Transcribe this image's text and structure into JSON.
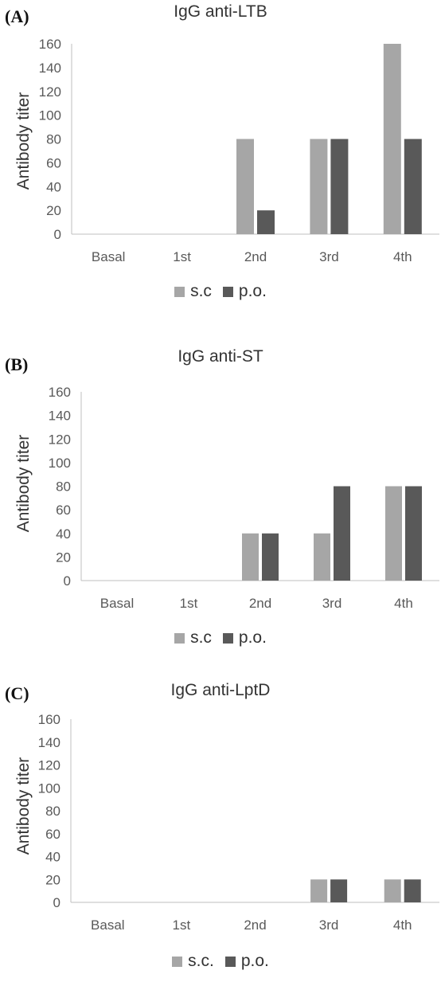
{
  "colors": {
    "sc": "#a6a6a6",
    "po": "#595959",
    "axis": "#bfbfbf",
    "text": "#595959"
  },
  "panels": [
    {
      "letter": "(A)",
      "title": "IgG anti-LTB",
      "ylabel": "Antibody titer",
      "legend": [
        "s.c",
        "p.o."
      ]
    },
    {
      "letter": "(B)",
      "title": "IgG anti-ST",
      "ylabel": "Antibody titer",
      "legend": [
        "s.c",
        "p.o."
      ]
    },
    {
      "letter": "(C)",
      "title": "IgG anti-LptD",
      "ylabel": "Antibody titer",
      "legend": [
        "s.c.",
        "p.o."
      ]
    }
  ],
  "chart_data": [
    {
      "type": "bar",
      "title": "IgG anti-LTB",
      "ylabel": "Antibody titer",
      "categories": [
        "Basal",
        "1st",
        "2nd",
        "3rd",
        "4th"
      ],
      "ylim": [
        0,
        160
      ],
      "yticks": [
        0,
        20,
        40,
        60,
        80,
        100,
        120,
        140,
        160
      ],
      "series": [
        {
          "name": "s.c",
          "values": [
            0,
            0,
            80,
            80,
            160
          ]
        },
        {
          "name": "p.o.",
          "values": [
            0,
            0,
            20,
            80,
            80
          ]
        }
      ],
      "legend": "bottom",
      "grid": false
    },
    {
      "type": "bar",
      "title": "IgG anti-ST",
      "ylabel": "Antibody titer",
      "categories": [
        "Basal",
        "1st",
        "2nd",
        "3rd",
        "4th"
      ],
      "ylim": [
        0,
        160
      ],
      "yticks": [
        0,
        20,
        40,
        60,
        80,
        100,
        120,
        140,
        160
      ],
      "series": [
        {
          "name": "s.c",
          "values": [
            0,
            0,
            40,
            40,
            80
          ]
        },
        {
          "name": "p.o.",
          "values": [
            0,
            0,
            40,
            80,
            80
          ]
        }
      ],
      "legend": "bottom",
      "grid": false
    },
    {
      "type": "bar",
      "title": "IgG anti-LptD",
      "ylabel": "Antibody titer",
      "categories": [
        "Basal",
        "1st",
        "2nd",
        "3rd",
        "4th"
      ],
      "ylim": [
        0,
        160
      ],
      "yticks": [
        0,
        20,
        40,
        60,
        80,
        100,
        120,
        140,
        160
      ],
      "series": [
        {
          "name": "s.c.",
          "values": [
            0,
            0,
            0,
            20,
            20
          ]
        },
        {
          "name": "p.o.",
          "values": [
            0,
            0,
            0,
            20,
            20
          ]
        }
      ],
      "legend": "bottom",
      "grid": false
    }
  ]
}
